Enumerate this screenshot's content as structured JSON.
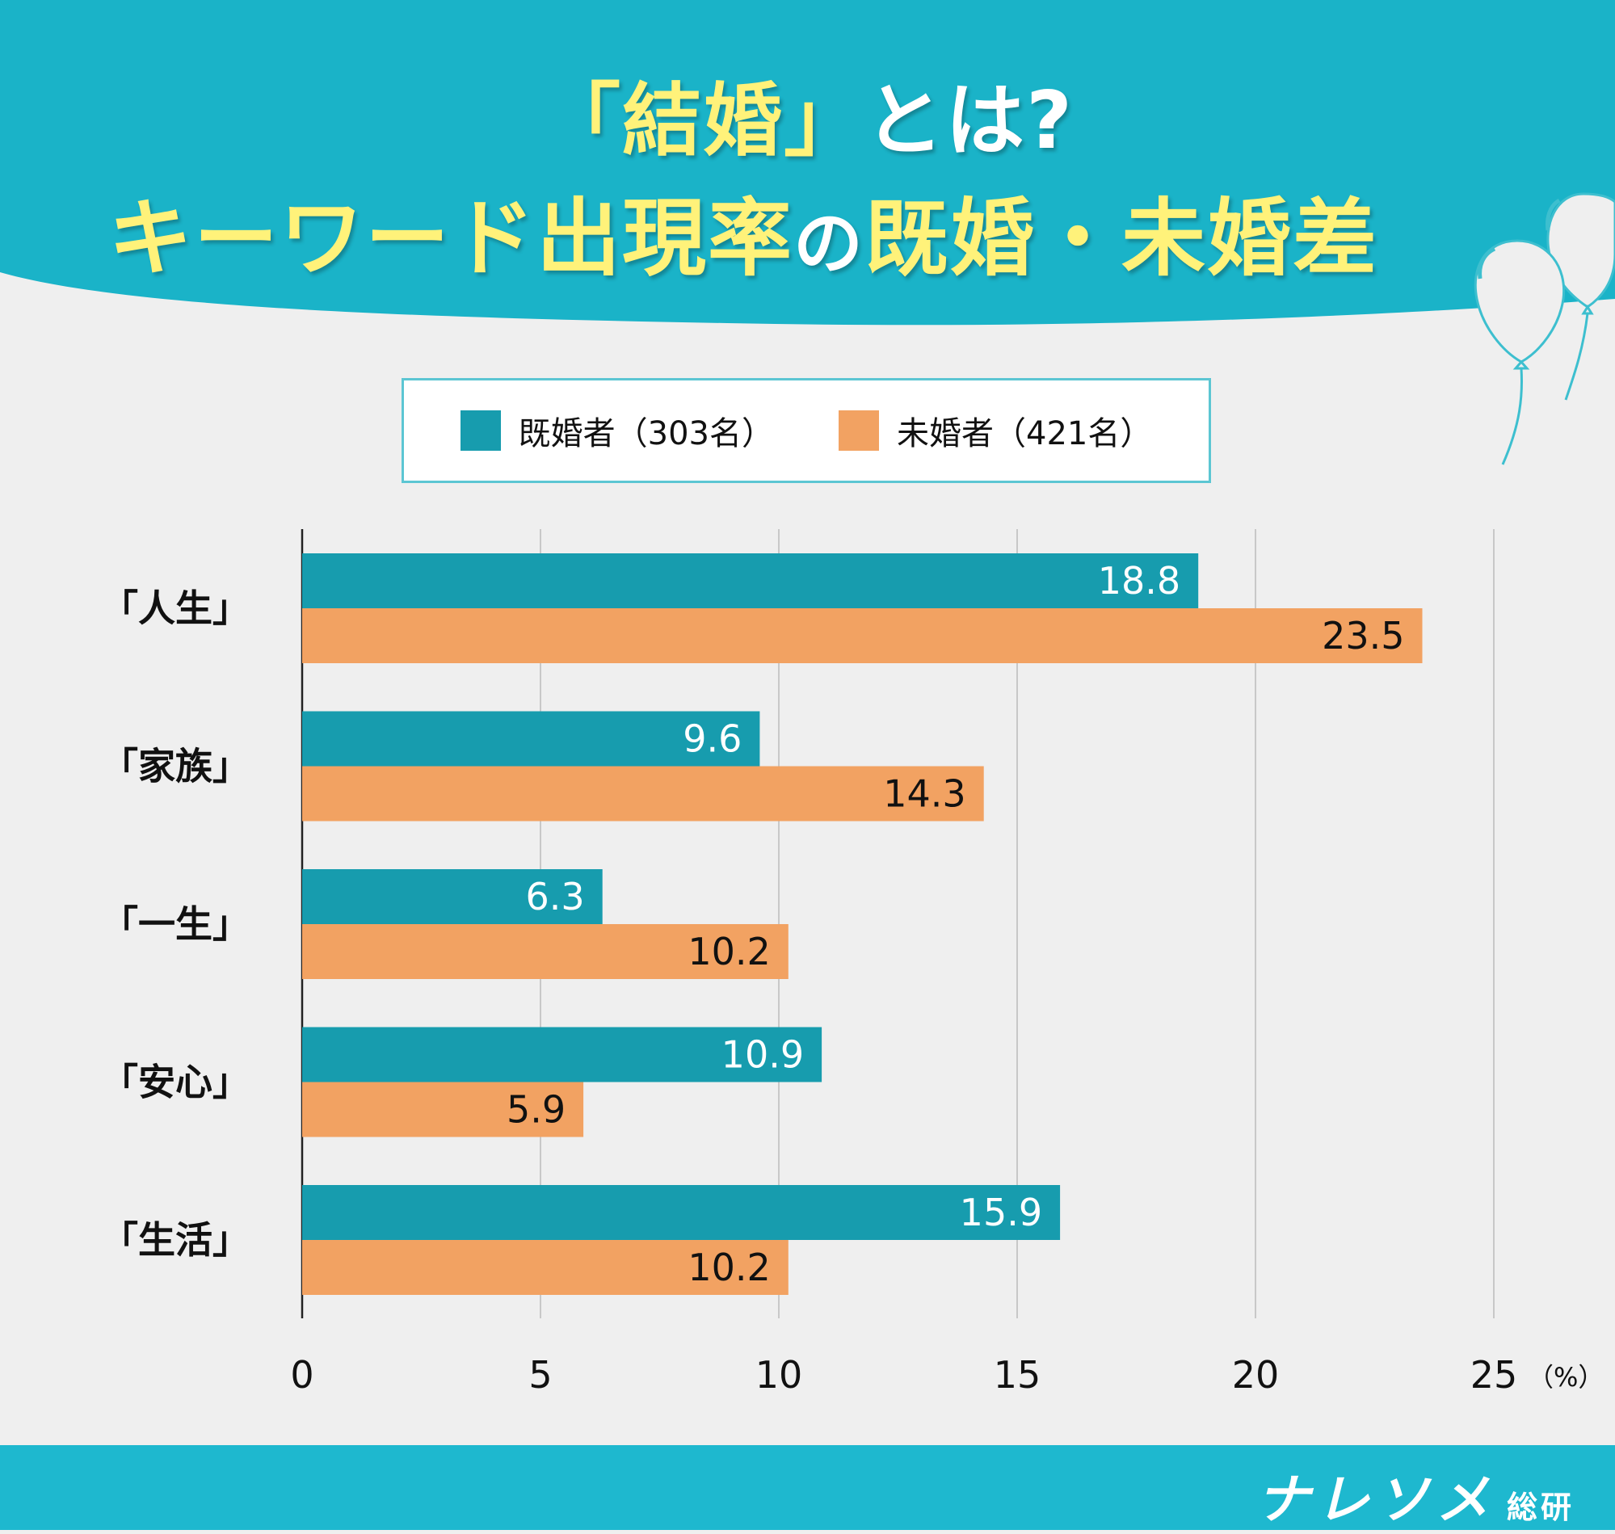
{
  "header": {
    "title_line1_quoted": "「結婚」",
    "title_line1_suffix": "とは?",
    "title_line2_part1": "キーワード出現率",
    "title_line2_no": "の",
    "title_line2_part2": "既婚・未婚差"
  },
  "colors": {
    "header_bg": "#1ab3c8",
    "title_yellow": "#fff27a",
    "married": "#179cae",
    "unmarried": "#f2a262",
    "background": "#efefef",
    "footer_bg": "#1eb8cf"
  },
  "legend": {
    "items": [
      {
        "label": "既婚者（303名）",
        "color": "#179cae"
      },
      {
        "label": "未婚者（421名）",
        "color": "#f2a262"
      }
    ]
  },
  "chart_data": {
    "type": "bar",
    "orientation": "horizontal",
    "title": "「結婚」とは? キーワード出現率の既婚・未婚差",
    "categories": [
      "「人生」",
      "「家族」",
      "「一生」",
      "「安心」",
      "「生活」"
    ],
    "series": [
      {
        "name": "既婚者（303名）",
        "color": "#179cae",
        "values": [
          18.8,
          9.6,
          6.3,
          10.9,
          15.9
        ]
      },
      {
        "name": "未婚者（421名）",
        "color": "#f2a262",
        "values": [
          23.5,
          14.3,
          10.2,
          5.9,
          10.2
        ]
      }
    ],
    "xlabel": "",
    "ylabel": "",
    "unit_label": "（%）",
    "xlim": [
      0,
      25
    ],
    "xticks": [
      0,
      5,
      10,
      15,
      20,
      25
    ],
    "tick_labels": [
      "0",
      "5",
      "10",
      "15",
      "20",
      "25"
    ],
    "grid": true,
    "legend_position": "top"
  },
  "footer": {
    "brand_main": "ナレソメ",
    "brand_sub": "総研"
  }
}
